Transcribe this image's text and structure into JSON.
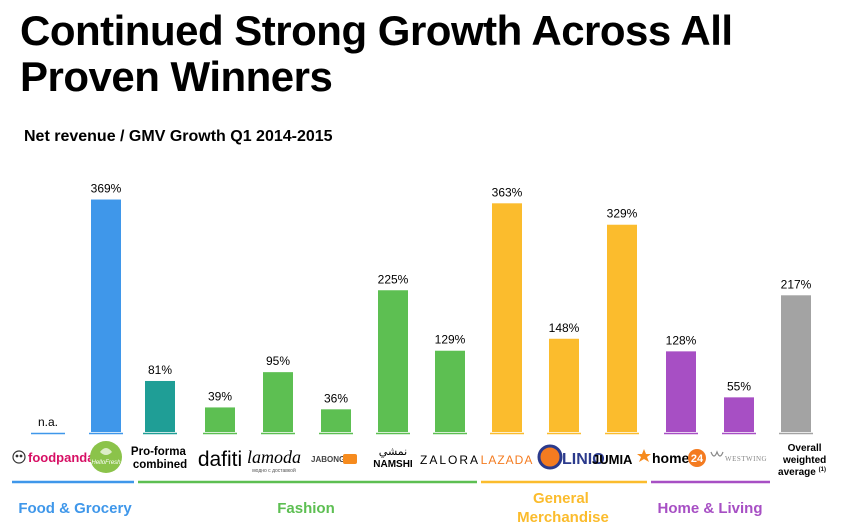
{
  "title": "Continued Strong Growth Across All Proven Winners",
  "subtitle": "Net revenue / GMV Growth Q1 2014-2015",
  "chart_data": {
    "type": "bar",
    "title": "Net revenue / GMV Growth Q1 2014-2015",
    "xlabel": "",
    "ylabel": "",
    "ylim": [
      0,
      400
    ],
    "unit": "%",
    "grid": false,
    "legend": "none",
    "categories": [
      "foodpanda",
      "helloFresh",
      "Pro-forma combined",
      "dafiti",
      "lamoda",
      "JABONG",
      "NAMSHI",
      "ZALORA",
      "LAZADA",
      "LINIO",
      "JUMIA",
      "home24",
      "WESTWING",
      "Overall weighted average(1)"
    ],
    "values": [
      null,
      369,
      81,
      39,
      95,
      36,
      225,
      129,
      363,
      148,
      329,
      128,
      55,
      217
    ],
    "value_labels": [
      "n.a.",
      "369%",
      "81%",
      "39%",
      "95%",
      "36%",
      "225%",
      "129%",
      "363%",
      "148%",
      "329%",
      "128%",
      "55%",
      "217%"
    ],
    "bar_colors": [
      "#3f97ea",
      "#3f97ea",
      "#1f9e96",
      "#5dbf52",
      "#5dbf52",
      "#5dbf52",
      "#5dbf52",
      "#5dbf52",
      "#fbbc2d",
      "#fbbc2d",
      "#fbbc2d",
      "#a74fc4",
      "#a74fc4",
      "#a3a3a3"
    ],
    "groups": [
      {
        "name": "Food & Grocery",
        "color": "#3f97ea",
        "first": 0,
        "last": 1
      },
      {
        "name": "Fashion",
        "color": "#5dbf52",
        "first": 2,
        "last": 7
      },
      {
        "name": "General Merchandise",
        "color": "#fbbc2d",
        "first": 8,
        "last": 10
      },
      {
        "name": "Home & Living",
        "color": "#a74fc4",
        "first": 11,
        "last": 12
      }
    ]
  },
  "logos": {
    "foodpanda": "foodpanda",
    "hellofresh": "HelloFresh",
    "proforma": [
      "Pro-forma",
      "combined"
    ],
    "dafiti": "dafiti",
    "lamoda": "lamoda",
    "lamoda_sub": "модно с доставкой",
    "jabong": "JABONG",
    "namshi_ar": "نمشي",
    "namshi": "NAMSHI",
    "zalora": "ZALORA",
    "lazada": "LAZADA",
    "linio": "LINIO",
    "jumia": "JUMIA",
    "home24_text": "home",
    "home24_badge": "24",
    "westwing": "WESTWING",
    "overall": [
      "Overall",
      "weighted",
      "average"
    ],
    "overall_sup": "(1)"
  },
  "groups": {
    "food": "Food & Grocery",
    "fashion": "Fashion",
    "general": [
      "General",
      "Merchandise"
    ],
    "home": "Home & Living"
  },
  "colors": {
    "blue": "#3f97ea",
    "teal": "#1f9e96",
    "green": "#5dbf52",
    "yellow": "#fbbc2d",
    "purple": "#a74fc4",
    "grey": "#a3a3a3",
    "foodpanda": "#d70f64",
    "lazada": "#f47b20",
    "jumia": "#f68b1e",
    "home24": "#f47b20"
  }
}
